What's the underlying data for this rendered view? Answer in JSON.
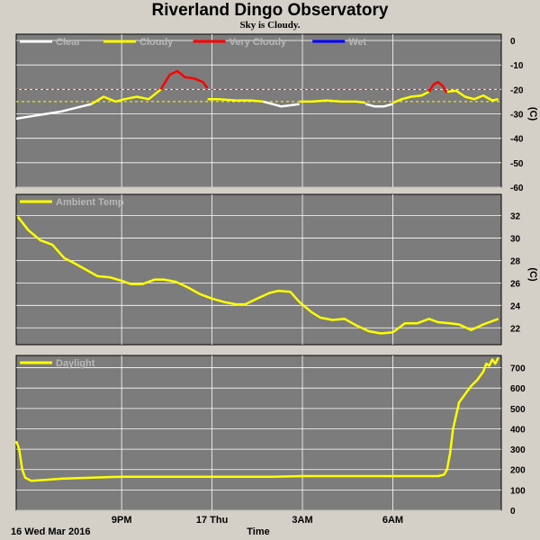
{
  "title": "Riverland Dingo Observatory",
  "subtitle": "Sky is Cloudy.",
  "colors": {
    "background": "#d4d0c8",
    "plot_bg": "#7c7c7c",
    "grid": "#ffffff",
    "clear": "#ffffff",
    "cloudy": "#ffff00",
    "very_cloudy": "#ff0000",
    "wet": "#0000ff"
  },
  "x_axis": {
    "label": "Time",
    "date_label": "16 Wed Mar 2016",
    "range_hours": [
      17.5,
      33.6
    ],
    "ticks": [
      {
        "label": "9PM",
        "hour": 21
      },
      {
        "label": "17 Thu",
        "hour": 24
      },
      {
        "label": "3AM",
        "hour": 27
      },
      {
        "label": "6AM",
        "hour": 30
      }
    ]
  },
  "chart_data": [
    {
      "type": "line",
      "id": "sky",
      "ylim": [
        -60,
        0
      ],
      "ylabel": "(C)",
      "yticks": [
        0,
        -10,
        -20,
        -30,
        -40,
        -50,
        -60
      ],
      "thresholds": [
        {
          "y": -20,
          "color": "#ff0000"
        },
        {
          "y": -25,
          "color": "#ffff00"
        }
      ],
      "legend": [
        {
          "label": "Clear",
          "color": "#ffffff"
        },
        {
          "label": "Cloudy",
          "color": "#ffff00"
        },
        {
          "label": "Very Cloudy",
          "color": "#ff0000"
        },
        {
          "label": "Wet",
          "color": "#0000ff"
        }
      ],
      "series": [
        {
          "name": "Clear",
          "color": "#ffffff",
          "x": [
            17.5,
            18.0,
            18.5,
            19.0,
            19.5,
            20.0
          ],
          "y": [
            -32,
            -31,
            -30,
            -29,
            -27.5,
            -26
          ]
        },
        {
          "name": "Cloudy",
          "color": "#ffff00",
          "x": [
            20.0,
            20.4,
            20.8,
            21.1,
            21.5,
            21.9,
            22.3
          ],
          "y": [
            -26,
            -23,
            -25,
            -24,
            -23,
            -24,
            -20
          ]
        },
        {
          "name": "Very Cloudy",
          "color": "#ff0000",
          "x": [
            22.3,
            22.6,
            22.85,
            23.1,
            23.4,
            23.7,
            23.85
          ],
          "y": [
            -20,
            -14,
            -12.5,
            -15,
            -15.5,
            -17,
            -19.5
          ]
        },
        {
          "name": "Cloudy",
          "color": "#ffff00",
          "x": [
            23.85,
            24.2,
            24.8,
            25.3,
            25.7
          ],
          "y": [
            -24,
            -24,
            -24.5,
            -24.5,
            -25
          ]
        },
        {
          "name": "Clear",
          "color": "#ffffff",
          "x": [
            25.7,
            26.0,
            26.3,
            26.6,
            26.9
          ],
          "y": [
            -25,
            -26,
            -27,
            -26.5,
            -26
          ]
        },
        {
          "name": "Cloudy",
          "color": "#ffff00",
          "x": [
            26.9,
            27.3,
            27.8,
            28.3,
            28.8,
            29.1
          ],
          "y": [
            -25,
            -25,
            -24.5,
            -25,
            -25,
            -25.5
          ]
        },
        {
          "name": "Clear",
          "color": "#ffffff",
          "x": [
            29.1,
            29.4,
            29.7,
            30.0
          ],
          "y": [
            -26,
            -27,
            -27,
            -26
          ]
        },
        {
          "name": "Cloudy",
          "color": "#ffff00",
          "x": [
            30.0,
            30.3,
            30.6,
            30.95,
            31.2
          ],
          "y": [
            -25.5,
            -24,
            -23,
            -22.5,
            -21
          ]
        },
        {
          "name": "Very Cloudy",
          "color": "#ff0000",
          "x": [
            31.2,
            31.35,
            31.5,
            31.65,
            31.8
          ],
          "y": [
            -21,
            -18,
            -17,
            -18.5,
            -21.5
          ]
        },
        {
          "name": "Cloudy",
          "color": "#ffff00",
          "x": [
            31.8,
            32.1,
            32.4,
            32.7,
            33.0,
            33.3,
            33.5
          ],
          "y": [
            -21,
            -20.5,
            -23,
            -24,
            -22.5,
            -24.5,
            -24
          ]
        }
      ]
    },
    {
      "type": "line",
      "id": "temp",
      "ylim": [
        20.5,
        33
      ],
      "ylabel": "(C)",
      "yticks": [
        32,
        30,
        28,
        26,
        24,
        22
      ],
      "legend": [
        {
          "label": "Ambient Temp",
          "color": "#ffff00"
        }
      ],
      "series": [
        {
          "name": "Ambient Temp",
          "color": "#ffff00",
          "x": [
            17.55,
            17.9,
            18.3,
            18.7,
            19.1,
            19.4,
            19.8,
            20.2,
            20.6,
            21.0,
            21.3,
            21.7,
            22.1,
            22.4,
            22.8,
            23.2,
            23.6,
            24.0,
            24.4,
            24.8,
            25.1,
            25.5,
            25.9,
            26.2,
            26.6,
            26.9,
            27.3,
            27.6,
            28.0,
            28.4,
            28.8,
            29.2,
            29.6,
            30.0,
            30.4,
            30.8,
            31.2,
            31.5,
            31.9,
            32.2,
            32.6,
            33.0,
            33.5
          ],
          "y": [
            31.9,
            30.7,
            29.8,
            29.4,
            28.2,
            27.8,
            27.2,
            26.6,
            26.5,
            26.2,
            25.9,
            25.9,
            26.3,
            26.3,
            26.1,
            25.6,
            25.0,
            24.6,
            24.3,
            24.1,
            24.1,
            24.6,
            25.1,
            25.3,
            25.2,
            24.3,
            23.4,
            22.9,
            22.7,
            22.8,
            22.2,
            21.7,
            21.5,
            21.6,
            22.4,
            22.4,
            22.8,
            22.5,
            22.4,
            22.3,
            21.8,
            22.3,
            22.8
          ]
        }
      ]
    },
    {
      "type": "line",
      "id": "light",
      "ylim": [
        0,
        760
      ],
      "yticks": [
        700,
        600,
        500,
        400,
        300,
        200,
        100,
        0
      ],
      "legend": [
        {
          "label": "Daylight",
          "color": "#ffff00"
        }
      ],
      "series": [
        {
          "name": "Daylight",
          "color": "#ffff00",
          "x": [
            17.5,
            17.6,
            17.7,
            17.8,
            18.0,
            18.5,
            19.0,
            20.0,
            21.0,
            22.0,
            23.0,
            24.0,
            25.0,
            26.0,
            27.0,
            28.0,
            29.0,
            30.0,
            31.0,
            31.5,
            31.7,
            31.8,
            31.9,
            32.0,
            32.2,
            32.4,
            32.6,
            32.8,
            33.0,
            33.1,
            33.2,
            33.3,
            33.4,
            33.5
          ],
          "y": [
            340,
            300,
            200,
            160,
            145,
            150,
            155,
            160,
            165,
            165,
            165,
            165,
            165,
            165,
            168,
            168,
            168,
            168,
            168,
            168,
            175,
            200,
            280,
            400,
            530,
            570,
            610,
            640,
            680,
            720,
            710,
            740,
            720,
            750
          ]
        }
      ]
    }
  ]
}
